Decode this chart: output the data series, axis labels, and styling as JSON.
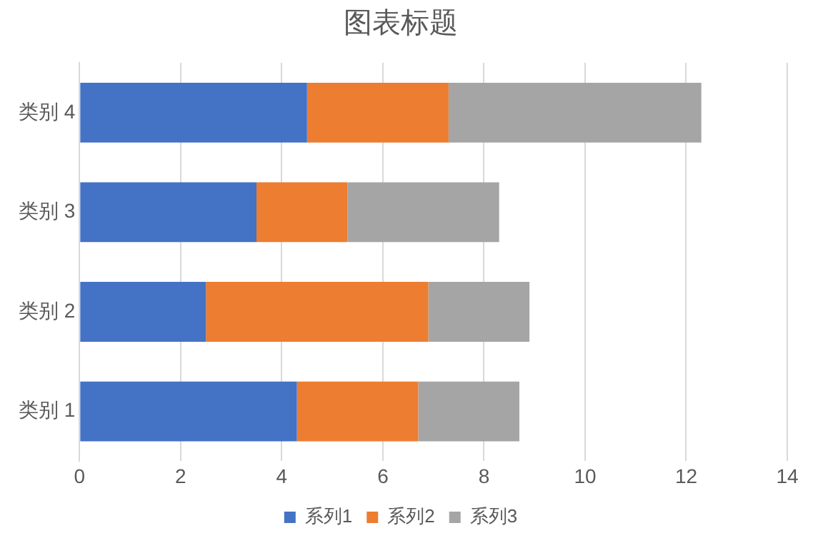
{
  "chart_data": {
    "type": "bar",
    "title": "图表标题",
    "orientation": "horizontal",
    "stacked": true,
    "categories": [
      "类别 4",
      "类别 3",
      "类别 2",
      "类别 1"
    ],
    "series": [
      {
        "name": "系列1",
        "color": "#4472c4",
        "values": [
          4.5,
          3.5,
          2.5,
          4.3
        ]
      },
      {
        "name": "系列2",
        "color": "#ed7d31",
        "values": [
          2.8,
          1.8,
          4.4,
          2.4
        ]
      },
      {
        "name": "系列3",
        "color": "#a5a5a5",
        "values": [
          5,
          3,
          2,
          2
        ]
      }
    ],
    "xlim": [
      0,
      14
    ],
    "xticks": [
      0,
      2,
      4,
      6,
      8,
      10,
      12,
      14
    ],
    "grid": "x",
    "legend": "bottom"
  }
}
